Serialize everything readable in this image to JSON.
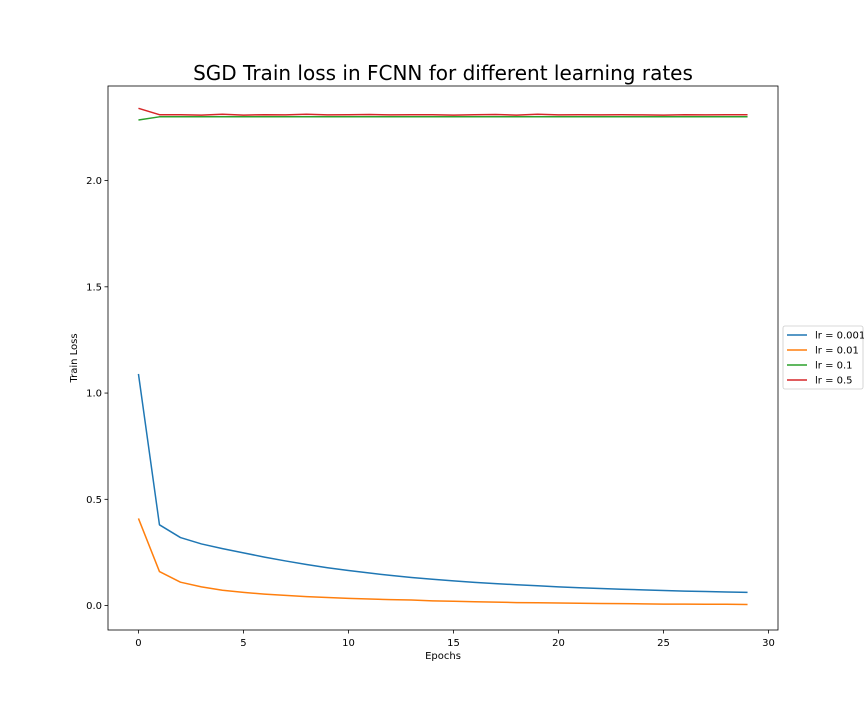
{
  "chart_data": {
    "type": "line",
    "title": "SGD Train loss in FCNN for different learning rates",
    "xlabel": "Epochs",
    "ylabel": "Train Loss",
    "xlim": [
      -1.45,
      30.45
    ],
    "ylim": [
      -0.115,
      2.445
    ],
    "xticks": [
      0,
      5,
      10,
      15,
      20,
      25,
      30
    ],
    "yticks": [
      0.0,
      0.5,
      1.0,
      1.5,
      2.0
    ],
    "grid": false,
    "legend_position": "center-right (outside plot)",
    "x": [
      0,
      1,
      2,
      3,
      4,
      5,
      6,
      7,
      8,
      9,
      10,
      11,
      12,
      13,
      14,
      15,
      16,
      17,
      18,
      19,
      20,
      21,
      22,
      23,
      24,
      25,
      26,
      27,
      28,
      29
    ],
    "series": [
      {
        "name": "lr = 0.001",
        "color": "#1f77b4",
        "values": [
          1.09,
          0.38,
          0.32,
          0.29,
          0.268,
          0.248,
          0.228,
          0.21,
          0.193,
          0.178,
          0.165,
          0.153,
          0.142,
          0.132,
          0.124,
          0.116,
          0.109,
          0.103,
          0.098,
          0.093,
          0.088,
          0.084,
          0.08,
          0.077,
          0.074,
          0.071,
          0.068,
          0.066,
          0.064,
          0.062
        ]
      },
      {
        "name": "lr = 0.01",
        "color": "#ff7f0e",
        "values": [
          0.41,
          0.16,
          0.11,
          0.088,
          0.072,
          0.062,
          0.054,
          0.048,
          0.042,
          0.038,
          0.034,
          0.031,
          0.028,
          0.026,
          0.022,
          0.02,
          0.018,
          0.016,
          0.014,
          0.013,
          0.012,
          0.011,
          0.01,
          0.009,
          0.008,
          0.007,
          0.007,
          0.006,
          0.006,
          0.005
        ]
      },
      {
        "name": "lr = 0.1",
        "color": "#2ca02c",
        "values": [
          2.285,
          2.3,
          2.3,
          2.3,
          2.3,
          2.3,
          2.3,
          2.3,
          2.3,
          2.3,
          2.3,
          2.3,
          2.3,
          2.3,
          2.3,
          2.3,
          2.3,
          2.3,
          2.3,
          2.3,
          2.3,
          2.3,
          2.3,
          2.3,
          2.3,
          2.3,
          2.3,
          2.3,
          2.3,
          2.3
        ]
      },
      {
        "name": "lr = 0.5",
        "color": "#d62728",
        "values": [
          2.34,
          2.31,
          2.31,
          2.308,
          2.312,
          2.308,
          2.31,
          2.309,
          2.312,
          2.309,
          2.31,
          2.311,
          2.309,
          2.31,
          2.31,
          2.308,
          2.31,
          2.311,
          2.308,
          2.312,
          2.309,
          2.31,
          2.309,
          2.31,
          2.309,
          2.308,
          2.31,
          2.309,
          2.31,
          2.31
        ]
      }
    ]
  }
}
